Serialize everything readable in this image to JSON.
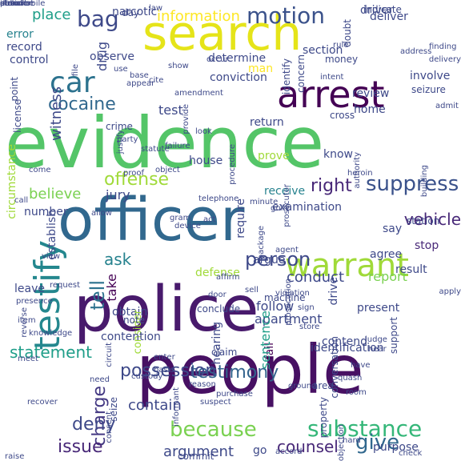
{
  "words": [
    {
      "text": "evidence",
      "color": "#54c568",
      "vertical": false
    },
    {
      "text": "people",
      "color": "#471063",
      "vertical": false
    },
    {
      "text": "police",
      "color": "#481a6c",
      "vertical": false
    },
    {
      "text": "officer",
      "color": "#31688e",
      "vertical": false
    },
    {
      "text": "search",
      "color": "#e5e419",
      "vertical": false
    },
    {
      "text": "arrest",
      "color": "#440154",
      "vertical": false
    },
    {
      "text": "warrant",
      "color": "#a0da39",
      "vertical": false
    },
    {
      "text": "testify",
      "color": "#24878e",
      "vertical": true
    },
    {
      "text": "car",
      "color": "#2c728e",
      "vertical": false
    },
    {
      "text": "motion",
      "color": "#3b528b",
      "vertical": false
    },
    {
      "text": "cocaine",
      "color": "#31688e",
      "vertical": false
    },
    {
      "text": "because",
      "color": "#7ad151",
      "vertical": false
    },
    {
      "text": "testimony",
      "color": "#33638d",
      "vertical": false
    },
    {
      "text": "substance",
      "color": "#35b779",
      "vertical": false
    },
    {
      "text": "possession",
      "color": "#3e4989",
      "vertical": false
    },
    {
      "text": "offense",
      "color": "#a0da39",
      "vertical": false
    },
    {
      "text": "suppress",
      "color": "#3b528b",
      "vertical": false
    },
    {
      "text": "right",
      "color": "#482878",
      "vertical": false
    },
    {
      "text": "ask",
      "color": "#26828e",
      "vertical": false
    },
    {
      "text": "person",
      "color": "#3e4989",
      "vertical": false
    },
    {
      "text": "charge",
      "color": "#443983",
      "vertical": true
    },
    {
      "text": "deny",
      "color": "#3e4989",
      "vertical": false
    },
    {
      "text": "give",
      "color": "#31688e",
      "vertical": false
    },
    {
      "text": "issue",
      "color": "#482878",
      "vertical": false
    },
    {
      "text": "statement",
      "color": "#1f9e89",
      "vertical": false
    },
    {
      "text": "witness",
      "color": "#3e4989",
      "vertical": true
    },
    {
      "text": "bag",
      "color": "#3e4989",
      "vertical": false
    },
    {
      "text": "tell",
      "color": "#2c728e",
      "vertical": true
    },
    {
      "text": "take",
      "color": "#440154",
      "vertical": true
    },
    {
      "text": "contain",
      "color": "#3e4989",
      "vertical": false
    },
    {
      "text": "counsel",
      "color": "#482878",
      "vertical": false
    },
    {
      "text": "argument",
      "color": "#3e4989",
      "vertical": false
    },
    {
      "text": "information",
      "color": "#fde725",
      "vertical": false
    },
    {
      "text": "vehicle",
      "color": "#482878",
      "vertical": false
    },
    {
      "text": "drug",
      "color": "#3e4989",
      "vertical": true
    },
    {
      "text": "place",
      "color": "#1f9e89",
      "vertical": false
    },
    {
      "text": "test",
      "color": "#3e4989",
      "vertical": false
    },
    {
      "text": "follow",
      "color": "#3e4989",
      "vertical": false
    },
    {
      "text": "apartment",
      "color": "#3e4989",
      "vertical": false
    },
    {
      "text": "conduct",
      "color": "#3e4989",
      "vertical": false
    },
    {
      "text": "fail",
      "color": "#440154",
      "vertical": true
    },
    {
      "text": "jury",
      "color": "#3e4989",
      "vertical": false
    },
    {
      "text": "receive",
      "color": "#26828e",
      "vertical": false
    },
    {
      "text": "argue",
      "color": "#3e4989",
      "vertical": false
    },
    {
      "text": "sentence",
      "color": "#1f9e89",
      "vertical": true
    },
    {
      "text": "error",
      "color": "#26828e",
      "vertical": false
    },
    {
      "text": "record",
      "color": "#3e4989",
      "vertical": false
    },
    {
      "text": "narcotic",
      "color": "#3e4989",
      "vertical": false
    },
    {
      "text": "deliver",
      "color": "#3e4989",
      "vertical": false
    },
    {
      "text": "control",
      "color": "#3e4989",
      "vertical": false
    },
    {
      "text": "defense",
      "color": "#a0da39",
      "vertical": false
    },
    {
      "text": "obtain",
      "color": "#3e4989",
      "vertical": false
    },
    {
      "text": "consider",
      "color": "#a0da39",
      "vertical": true
    },
    {
      "text": "note",
      "color": "#3e4989",
      "vertical": false
    },
    {
      "text": "report",
      "color": "#7ad151",
      "vertical": false
    },
    {
      "text": "agree",
      "color": "#3e4989",
      "vertical": false
    },
    {
      "text": "say",
      "color": "#3e4989",
      "vertical": false
    },
    {
      "text": "stop",
      "color": "#482878",
      "vertical": false
    },
    {
      "text": "house",
      "color": "#3e4989",
      "vertical": false
    },
    {
      "text": "know",
      "color": "#3e4989",
      "vertical": false
    },
    {
      "text": "prove",
      "color": "#a0da39",
      "vertical": false
    },
    {
      "text": "determine",
      "color": "#3e4989",
      "vertical": false
    },
    {
      "text": "conviction",
      "color": "#3e4989",
      "vertical": false
    },
    {
      "text": "observe",
      "color": "#3e4989",
      "vertical": false
    },
    {
      "text": "man",
      "color": "#fde725",
      "vertical": false
    },
    {
      "text": "number",
      "color": "#3e4989",
      "vertical": false
    },
    {
      "text": "leave",
      "color": "#3e4989",
      "vertical": false
    },
    {
      "text": "believe",
      "color": "#7ad151",
      "vertical": false
    },
    {
      "text": "establish",
      "color": "#3e4989",
      "vertical": true
    },
    {
      "text": "require",
      "color": "#3e4989",
      "vertical": true
    },
    {
      "text": "circumstance",
      "color": "#a0da39",
      "vertical": true
    },
    {
      "text": "drive",
      "color": "#3e4989",
      "vertical": true
    },
    {
      "text": "contend",
      "color": "#3e4989",
      "vertical": false
    },
    {
      "text": "present",
      "color": "#3e4989",
      "vertical": false
    },
    {
      "text": "identification",
      "color": "#3e4989",
      "vertical": false
    },
    {
      "text": "conclude",
      "color": "#3e4989",
      "vertical": false
    },
    {
      "text": "claim",
      "color": "#3e4989",
      "vertical": false
    },
    {
      "text": "purpose",
      "color": "#3e4989",
      "vertical": false
    },
    {
      "text": "go",
      "color": "#3e4989",
      "vertical": false
    },
    {
      "text": "commit",
      "color": "#3e4989",
      "vertical": false
    },
    {
      "text": "home",
      "color": "#3e4989",
      "vertical": false
    },
    {
      "text": "review",
      "color": "#3e4989",
      "vertical": false
    },
    {
      "text": "return",
      "color": "#3e4989",
      "vertical": false
    },
    {
      "text": "examination",
      "color": "#3e4989",
      "vertical": false
    },
    {
      "text": "involve",
      "color": "#3e4989",
      "vertical": false
    },
    {
      "text": "section",
      "color": "#3e4989",
      "vertical": false
    },
    {
      "text": "crime",
      "color": "#3e4989",
      "vertical": false
    },
    {
      "text": "result",
      "color": "#3e4989",
      "vertical": false
    },
    {
      "text": "driver",
      "color": "#3e4989",
      "vertical": false
    },
    {
      "text": "indicate",
      "color": "#3e4989",
      "vertical": false
    },
    {
      "text": "doubt",
      "color": "#3e4989",
      "vertical": true
    },
    {
      "text": "rule",
      "color": "#3e4989",
      "vertical": false
    },
    {
      "text": "money",
      "color": "#3e4989",
      "vertical": false
    },
    {
      "text": "identify",
      "color": "#3e4989",
      "vertical": true
    },
    {
      "text": "seizure",
      "color": "#3e4989",
      "vertical": false
    },
    {
      "text": "station",
      "color": "#3e4989",
      "vertical": false
    },
    {
      "text": "cross",
      "color": "#3e4989",
      "vertical": false
    },
    {
      "text": "machine",
      "color": "#3e4989",
      "vertical": false
    },
    {
      "text": "area",
      "color": "#3e4989",
      "vertical": false
    },
    {
      "text": "hearing",
      "color": "#3e4989",
      "vertical": true
    },
    {
      "text": "support",
      "color": "#3e4989",
      "vertical": true
    },
    {
      "text": "conversation",
      "color": "#3e4989",
      "vertical": true
    },
    {
      "text": "property",
      "color": "#3e4989",
      "vertical": true
    },
    {
      "text": "seize",
      "color": "#3e4989",
      "vertical": true
    },
    {
      "text": "contention",
      "color": "#3e4989",
      "vertical": false
    },
    {
      "text": "concern",
      "color": "#3e4989",
      "vertical": true
    },
    {
      "text": "license",
      "color": "#3e4989",
      "vertical": true
    },
    {
      "text": "point",
      "color": "#3e4989",
      "vertical": true
    },
    {
      "text": "day",
      "color": "#3e4989",
      "vertical": false
    },
    {
      "text": "law",
      "color": "#3e4989",
      "vertical": false
    },
    {
      "text": "intent",
      "color": "#3e4989",
      "vertical": false
    },
    {
      "text": "occur",
      "color": "#3e4989",
      "vertical": false
    },
    {
      "text": "use",
      "color": "#3e4989",
      "vertical": false
    },
    {
      "text": "show",
      "color": "#3e4989",
      "vertical": false
    },
    {
      "text": "cite",
      "color": "#3e4989",
      "vertical": false
    },
    {
      "text": "appear",
      "color": "#3e4989",
      "vertical": false
    },
    {
      "text": "amendment",
      "color": "#3e4989",
      "vertical": false
    },
    {
      "text": "justify",
      "color": "#3e4989",
      "vertical": true
    },
    {
      "text": "party",
      "color": "#3e4989",
      "vertical": false
    },
    {
      "text": "failure",
      "color": "#3e4989",
      "vertical": false
    },
    {
      "text": "statute",
      "color": "#3e4989",
      "vertical": false
    },
    {
      "text": "minute",
      "color": "#3e4989",
      "vertical": false
    },
    {
      "text": "guilt",
      "color": "#3e4989",
      "vertical": false
    },
    {
      "text": "telephone",
      "color": "#3e4989",
      "vertical": false
    },
    {
      "text": "allow",
      "color": "#3e4989",
      "vertical": false
    },
    {
      "text": "gram",
      "color": "#3e4989",
      "vertical": false
    },
    {
      "text": "device",
      "color": "#3e4989",
      "vertical": false
    },
    {
      "text": "package",
      "color": "#3e4989",
      "vertical": true
    },
    {
      "text": "act",
      "color": "#3e4989",
      "vertical": false
    },
    {
      "text": "agent",
      "color": "#3e4989",
      "vertical": false
    },
    {
      "text": "admit",
      "color": "#3e4989",
      "vertical": false
    },
    {
      "text": "heroin",
      "color": "#3e4989",
      "vertical": false
    },
    {
      "text": "building",
      "color": "#3e4989",
      "vertical": true
    },
    {
      "text": "authority",
      "color": "#3e4989",
      "vertical": true
    },
    {
      "text": "prosecutor",
      "color": "#3e4989",
      "vertical": true
    },
    {
      "text": "procedure",
      "color": "#3e4989",
      "vertical": true
    },
    {
      "text": "object",
      "color": "#3e4989",
      "vertical": false
    },
    {
      "text": "proof",
      "color": "#3e4989",
      "vertical": false
    },
    {
      "text": "call",
      "color": "#3e4989",
      "vertical": false
    },
    {
      "text": "come",
      "color": "#3e4989",
      "vertical": false
    },
    {
      "text": "view",
      "color": "#3e4989",
      "vertical": false
    },
    {
      "text": "request",
      "color": "#3e4989",
      "vertical": false
    },
    {
      "text": "presence",
      "color": "#3e4989",
      "vertical": false
    },
    {
      "text": "reverse",
      "color": "#3e4989",
      "vertical": true
    },
    {
      "text": "item",
      "color": "#3e4989",
      "vertical": false
    },
    {
      "text": "knowledge",
      "color": "#3e4989",
      "vertical": false
    },
    {
      "text": "meet",
      "color": "#3e4989",
      "vertical": false
    },
    {
      "text": "basis",
      "color": "#3e4989",
      "vertical": false
    },
    {
      "text": "recover",
      "color": "#3e4989",
      "vertical": false
    },
    {
      "text": "raise",
      "color": "#3e4989",
      "vertical": false
    },
    {
      "text": "affirm",
      "color": "#3e4989",
      "vertical": false
    },
    {
      "text": "enter",
      "color": "#3e4989",
      "vertical": false
    },
    {
      "text": "custody",
      "color": "#3e4989",
      "vertical": false
    },
    {
      "text": "reason",
      "color": "#3e4989",
      "vertical": false
    },
    {
      "text": "need",
      "color": "#3e4989",
      "vertical": false
    },
    {
      "text": "informant",
      "color": "#3e4989",
      "vertical": true
    },
    {
      "text": "suspect",
      "color": "#3e4989",
      "vertical": false
    },
    {
      "text": "purchase",
      "color": "#3e4989",
      "vertical": false
    },
    {
      "text": "door",
      "color": "#3e4989",
      "vertical": false
    },
    {
      "text": "sell",
      "color": "#3e4989",
      "vertical": false
    },
    {
      "text": "prosecution",
      "color": "#3e4989",
      "vertical": true
    },
    {
      "text": "violation",
      "color": "#3e4989",
      "vertical": false
    },
    {
      "text": "sign",
      "color": "#3e4989",
      "vertical": false
    },
    {
      "text": "store",
      "color": "#3e4989",
      "vertical": false
    },
    {
      "text": "ground",
      "color": "#3e4989",
      "vertical": false
    },
    {
      "text": "quash",
      "color": "#3e4989",
      "vertical": false
    },
    {
      "text": "room",
      "color": "#3e4989",
      "vertical": false
    },
    {
      "text": "have",
      "color": "#3e4989",
      "vertical": false
    },
    {
      "text": "hear",
      "color": "#3e4989",
      "vertical": false
    },
    {
      "text": "judge",
      "color": "#3e4989",
      "vertical": false
    },
    {
      "text": "apply",
      "color": "#3e4989",
      "vertical": false
    },
    {
      "text": "address",
      "color": "#3e4989",
      "vertical": false
    },
    {
      "text": "finding",
      "color": "#3e4989",
      "vertical": false
    },
    {
      "text": "delivery",
      "color": "#3e4989",
      "vertical": false
    },
    {
      "text": "objection",
      "color": "#3e4989",
      "vertical": true
    },
    {
      "text": "check",
      "color": "#3e4989",
      "vertical": false
    },
    {
      "text": "accord",
      "color": "#3e4989",
      "vertical": false
    },
    {
      "text": "hard",
      "color": "#3e4989",
      "vertical": false
    },
    {
      "text": "circuit",
      "color": "#3e4989",
      "vertical": true
    },
    {
      "text": "file",
      "color": "#3e4989",
      "vertical": true
    },
    {
      "text": "consent",
      "color": "#3e4989",
      "vertical": true
    },
    {
      "text": "base",
      "color": "#3e4989",
      "vertical": false
    },
    {
      "text": "provide",
      "color": "#3e4989",
      "vertical": true
    },
    {
      "text": "look",
      "color": "#3e4989",
      "vertical": false
    },
    {
      "text": "err",
      "color": "#3e4989",
      "vertical": false
    },
    {
      "text": "describe",
      "color": "#3e4989",
      "vertical": false
    },
    {
      "text": "include",
      "color": "#3e4989",
      "vertical": false
    },
    {
      "text": "stand",
      "color": "#3e4989",
      "vertical": false
    },
    {
      "text": "automobile",
      "color": "#3e4989",
      "vertical": false
    },
    {
      "text": "ch",
      "color": "#3e4989",
      "vertical": false
    },
    {
      "text": "decision",
      "color": "#3e4989",
      "vertical": false
    },
    {
      "text": "p.m.",
      "color": "#3e4989",
      "vertical": false
    },
    {
      "text": "ofn",
      "color": "#3e4989",
      "vertical": false
    },
    {
      "text": "oc",
      "color": "#3e4989",
      "vertical": false
    }
  ]
}
